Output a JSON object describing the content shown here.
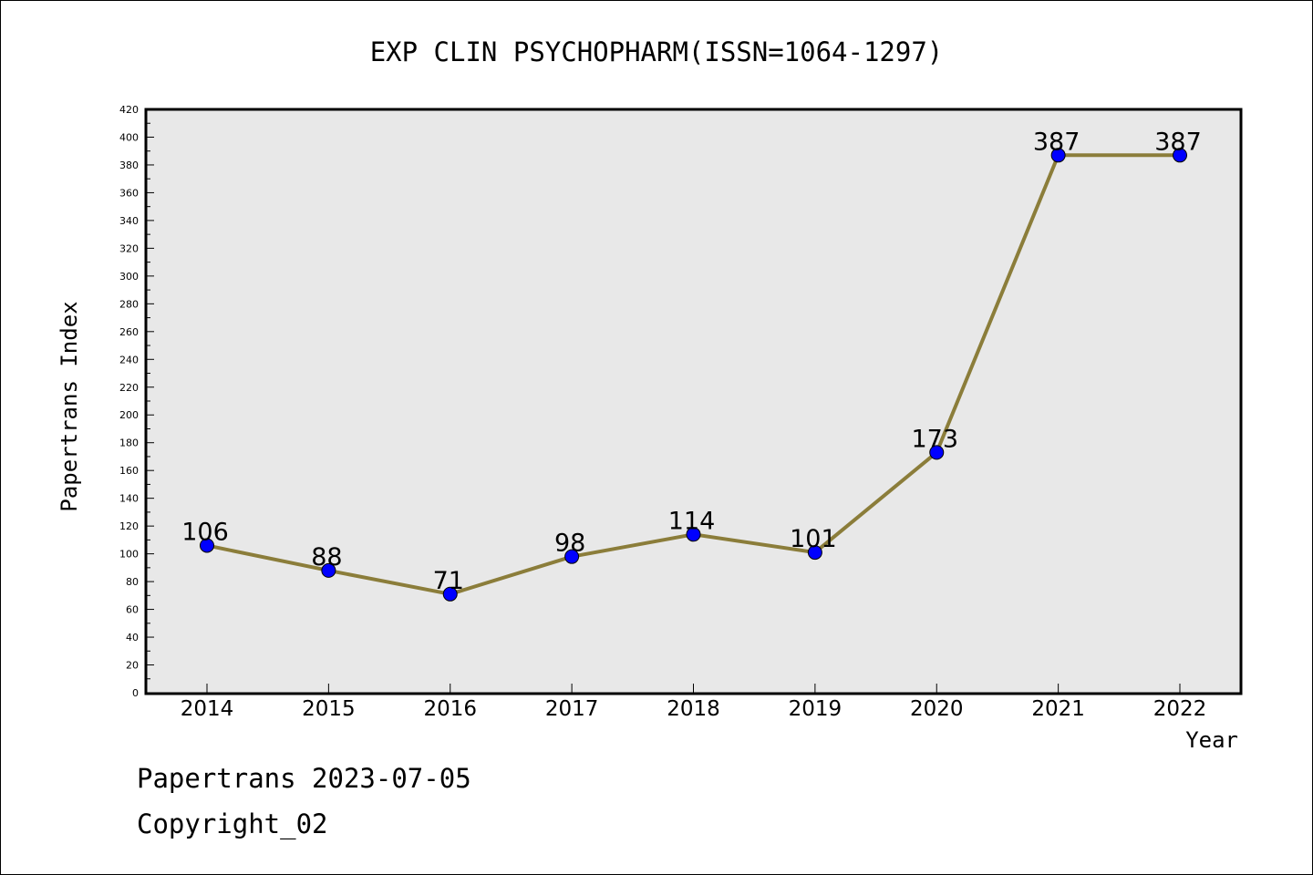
{
  "chart_data": {
    "type": "line",
    "title": "EXP CLIN PSYCHOPHARM(ISSN=1064-1297)",
    "xlabel": "Year",
    "ylabel": "Papertrans Index",
    "categories": [
      "2014",
      "2015",
      "2016",
      "2017",
      "2018",
      "2019",
      "2020",
      "2021",
      "2022"
    ],
    "series": [
      {
        "values": [
          106,
          88,
          71,
          98,
          114,
          101,
          173,
          387,
          387
        ]
      }
    ],
    "data_labels": [
      "106",
      "88",
      "71",
      "98",
      "114",
      "101",
      "173",
      "387",
      "387"
    ],
    "ylim": [
      0,
      420
    ],
    "y_ticks": [
      "0",
      "20",
      "40",
      "60",
      "80",
      "100",
      "120",
      "140",
      "160",
      "180",
      "200",
      "220",
      "240",
      "260",
      "280",
      "300",
      "320",
      "340",
      "360",
      "380",
      "400",
      "420"
    ],
    "grid": false,
    "line_color": "#8b7d3a",
    "marker_color": "#0000ff",
    "plot_background": "#e8e8e8"
  },
  "footer": {
    "line1": "Papertrans 2023-07-05",
    "line2": "Copyright_02"
  }
}
